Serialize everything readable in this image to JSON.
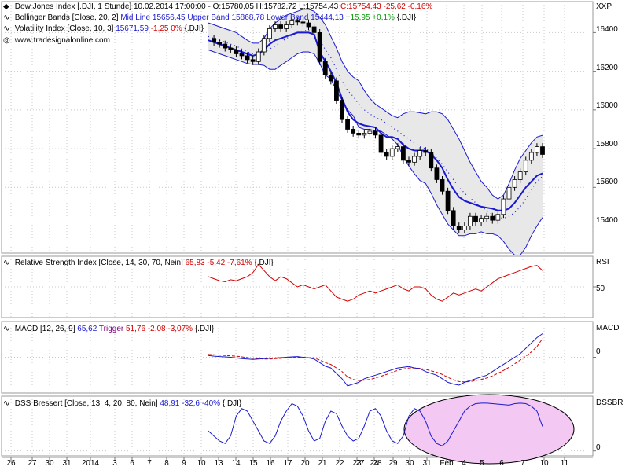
{
  "colors": {
    "blue": "#1a1ad0",
    "red": "#d40000",
    "green": "#009a00",
    "purple": "#7a0080",
    "band_fill": "#e8e8e8",
    "highlight": "#f3c8f3"
  },
  "panels": {
    "price": {
      "title_line": {
        "symbol": "Dow Jones Index [.DJI, 1 Stunde]",
        "datetime": "10.02.2014 17:00:00",
        "ohl": "- O:15780,05 H:15782,72 L:15754,43",
        "close": "C:15754,43 -25,62 -0,16%"
      },
      "bb_line": {
        "name": "Bollinger Bands [Close, 20, 2]",
        "values": "Mid Line 15656,45 Upper Band 15868,78 Lower Band 15444,13",
        "change": "+15,95 +0,1%",
        "symbol": "{.DJI}"
      },
      "vol_line": {
        "name": "Volatility Index [Close, 10, 3]",
        "value": "15671,59",
        "change": "-1,25 0%",
        "symbol": "{.DJI}"
      },
      "watermark": "www.tradesignalonline.com",
      "axis_label": "XXP",
      "ticks": [
        "16400",
        "16200",
        "16000",
        "15800",
        "15600",
        "15400"
      ]
    },
    "rsi": {
      "name": "Relative Strength Index [Close, 14, 30, 70, Nein]",
      "value": "65,83 -5,42 -7,61%",
      "symbol": "{.DJI}",
      "axis_label": "RSI",
      "tick": "50"
    },
    "macd": {
      "name": "MACD [12, 26, 9]",
      "value": "65,62",
      "trigger_label": "Trigger",
      "trigger_value": "51,76 -2,08 -3,07%",
      "symbol": "{.DJI}",
      "axis_label": "MACD",
      "tick": "0"
    },
    "dss": {
      "name": "DSS Bressert [Close, 13, 4, 20, 80, Nein]",
      "value": "48,91 -32,6 -40%",
      "symbol": "{.DJI}",
      "axis_label": "DSSBR",
      "tick": "0"
    }
  },
  "x_axis": {
    "labels": [
      "26",
      "27",
      "30",
      "31",
      "2014",
      "3",
      "6",
      "7",
      "8",
      "9",
      "10",
      "13",
      "14",
      "15",
      "16",
      "17",
      "20",
      "21",
      "22",
      "23",
      "24",
      "27",
      "28",
      "29",
      "30",
      "31",
      "Feb",
      "4",
      "5",
      "6",
      "7",
      "10",
      "11"
    ]
  },
  "chart_data": [
    {
      "type": "line",
      "title": "Dow Jones Index [.DJI, 1 Stunde]",
      "ylabel": "XXP",
      "ylim": [
        15260,
        16560
      ],
      "series": [
        {
          "name": "Close",
          "values": [
            16370,
            16350,
            16340,
            16320,
            16310,
            16290,
            16280,
            16260,
            16250,
            16300,
            16370,
            16420,
            16440,
            16420,
            16440,
            16460,
            16455,
            16450,
            16430,
            16400,
            16250,
            16180,
            16150,
            16050,
            15950,
            15900,
            15880,
            15870,
            15880,
            15890,
            15870,
            15780,
            15760,
            15800,
            15810,
            15740,
            15730,
            15760,
            15790,
            15780,
            15700,
            15640,
            15580,
            15480,
            15400,
            15380,
            15400,
            15450,
            15420,
            15440,
            15450,
            15430,
            15460,
            15540,
            15600,
            15640,
            15680,
            15740,
            15780,
            15810,
            15770
          ]
        },
        {
          "name": "Mid Line",
          "values": [
            16380,
            16370,
            16360,
            16350,
            16340,
            16330,
            16315,
            16300,
            16290,
            16290,
            16300,
            16315,
            16330,
            16350,
            16370,
            16385,
            16400,
            16410,
            16410,
            16400,
            16360,
            16310,
            16270,
            16210,
            16150,
            16100,
            16070,
            16030,
            16000,
            15980,
            15960,
            15950,
            15930,
            15910,
            15890,
            15870,
            15850,
            15830,
            15810,
            15800,
            15780,
            15750,
            15720,
            15680,
            15640,
            15600,
            15570,
            15545,
            15520,
            15500,
            15480,
            15460,
            15445,
            15440,
            15450,
            15470,
            15500,
            15540,
            15590,
            15630,
            15656
          ]
        },
        {
          "name": "Upper Band",
          "values": [
            16450,
            16440,
            16430,
            16420,
            16410,
            16400,
            16380,
            16360,
            16345,
            16345,
            16370,
            16420,
            16450,
            16470,
            16490,
            16500,
            16510,
            16520,
            16520,
            16510,
            16480,
            16440,
            16380,
            16320,
            16250,
            16200,
            16170,
            16150,
            16100,
            16060,
            16030,
            16010,
            15990,
            15970,
            15960,
            15980,
            15990,
            15990,
            15985,
            15980,
            15990,
            15990,
            15980,
            15950,
            15900,
            15850,
            15790,
            15730,
            15680,
            15630,
            15600,
            15560,
            15540,
            15560,
            15620,
            15690,
            15750,
            15790,
            15830,
            15860,
            15869
          ]
        },
        {
          "name": "Lower Band",
          "values": [
            16310,
            16300,
            16290,
            16280,
            16270,
            16260,
            16250,
            16240,
            16235,
            16235,
            16230,
            16210,
            16210,
            16230,
            16250,
            16270,
            16290,
            16300,
            16300,
            16290,
            16240,
            16180,
            16160,
            16100,
            16050,
            16000,
            15970,
            15910,
            15900,
            15900,
            15890,
            15890,
            15870,
            15850,
            15820,
            15760,
            15710,
            15670,
            15635,
            15620,
            15570,
            15510,
            15460,
            15410,
            15380,
            15350,
            15350,
            15360,
            15360,
            15370,
            15360,
            15360,
            15350,
            15320,
            15280,
            15250,
            15250,
            15290,
            15350,
            15400,
            15444
          ]
        },
        {
          "name": "Volatility Index",
          "values": [
            16360,
            16350,
            16340,
            16330,
            16320,
            16310,
            16300,
            16290,
            16280,
            16290,
            16310,
            16340,
            16360,
            16370,
            16380,
            16390,
            16400,
            16400,
            16400,
            16390,
            16300,
            16250,
            16200,
            16140,
            16060,
            15990,
            15950,
            15930,
            15920,
            15915,
            15910,
            15880,
            15860,
            15860,
            15850,
            15820,
            15800,
            15790,
            15790,
            15790,
            15770,
            15740,
            15700,
            15640,
            15590,
            15550,
            15530,
            15520,
            15510,
            15500,
            15495,
            15490,
            15480,
            15480,
            15490,
            15520,
            15560,
            15600,
            15630,
            15660,
            15672
          ]
        }
      ]
    },
    {
      "type": "line",
      "title": "Relative Strength Index [Close, 14, 30, 70, Nein]",
      "ylabel": "RSI",
      "ylim": [
        20,
        80
      ],
      "series": [
        {
          "name": "RSI",
          "values": [
            60,
            58,
            56,
            55,
            57,
            56,
            58,
            60,
            64,
            72,
            66,
            60,
            56,
            60,
            58,
            54,
            50,
            52,
            50,
            48,
            50,
            52,
            46,
            40,
            38,
            36,
            38,
            42,
            44,
            46,
            44,
            46,
            48,
            50,
            52,
            48,
            46,
            50,
            50,
            48,
            42,
            38,
            36,
            40,
            44,
            42,
            44,
            46,
            48,
            46,
            50,
            54,
            58,
            60,
            62,
            64,
            66,
            68,
            70,
            71,
            66
          ]
        }
      ]
    },
    {
      "type": "line",
      "title": "MACD [12, 26, 9]",
      "ylabel": "MACD",
      "ylim": [
        -100,
        100
      ],
      "series": [
        {
          "name": "MACD",
          "values": [
            5,
            3,
            2,
            1,
            0,
            -2,
            -4,
            -5,
            -6,
            -5,
            -4,
            -3,
            -2,
            -1,
            0,
            1,
            2,
            0,
            -2,
            -5,
            -15,
            -25,
            -30,
            -45,
            -60,
            -80,
            -75,
            -70,
            -60,
            -55,
            -50,
            -45,
            -40,
            -35,
            -30,
            -28,
            -26,
            -30,
            -32,
            -40,
            -45,
            -50,
            -60,
            -70,
            -75,
            -78,
            -70,
            -65,
            -60,
            -55,
            -50,
            -40,
            -30,
            -20,
            -10,
            0,
            10,
            25,
            40,
            55,
            66
          ]
        },
        {
          "name": "Trigger",
          "values": [
            8,
            7,
            6,
            5,
            4,
            3,
            1,
            -1,
            -3,
            -4,
            -5,
            -5,
            -4,
            -3,
            -2,
            -1,
            0,
            0,
            -1,
            -2,
            -8,
            -15,
            -20,
            -30,
            -40,
            -55,
            -62,
            -65,
            -64,
            -62,
            -58,
            -53,
            -48,
            -42,
            -37,
            -33,
            -30,
            -30,
            -31,
            -34,
            -38,
            -42,
            -48,
            -56,
            -63,
            -68,
            -69,
            -68,
            -65,
            -62,
            -58,
            -52,
            -45,
            -37,
            -28,
            -18,
            -8,
            3,
            15,
            30,
            52
          ]
        }
      ]
    },
    {
      "type": "line",
      "title": "DSS Bressert [Close, 13, 4, 20, 80, Nein]",
      "ylabel": "DSSBR",
      "ylim": [
        -10,
        110
      ],
      "series": [
        {
          "name": "DSS",
          "values": [
            40,
            30,
            20,
            15,
            30,
            70,
            85,
            80,
            60,
            40,
            20,
            15,
            30,
            60,
            80,
            95,
            90,
            70,
            40,
            20,
            25,
            60,
            80,
            75,
            50,
            30,
            20,
            25,
            50,
            80,
            85,
            70,
            40,
            20,
            15,
            30,
            70,
            85,
            80,
            60,
            30,
            15,
            10,
            20,
            40,
            60,
            80,
            90,
            95,
            96,
            96,
            95,
            94,
            93,
            92,
            95,
            96,
            95,
            90,
            80,
            49
          ]
        }
      ]
    }
  ]
}
